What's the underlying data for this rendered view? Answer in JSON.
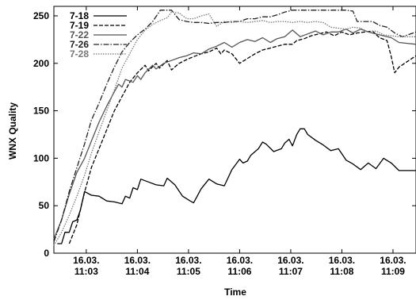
{
  "chart_data": {
    "type": "line",
    "xlabel": "Time",
    "ylabel": "WNX Quality",
    "ylim": [
      0,
      260
    ],
    "xlim": [
      "11:02:22",
      "11:09:27"
    ],
    "yticks": [
      0,
      50,
      100,
      150,
      200,
      250
    ],
    "xticks": [
      {
        "value": "11:03",
        "date": "16.03.",
        "time": "11:03"
      },
      {
        "value": "11:04",
        "date": "16.03.",
        "time": "11:04"
      },
      {
        "value": "11:05",
        "date": "16.03.",
        "time": "11:05"
      },
      {
        "value": "11:06",
        "date": "16.03.",
        "time": "11:06"
      },
      {
        "value": "11:07",
        "date": "16.03.",
        "time": "11:07"
      },
      {
        "value": "11:08",
        "date": "16.03.",
        "time": "11:08"
      },
      {
        "value": "11:09",
        "date": "16.03.",
        "time": "11:09"
      }
    ],
    "grid": false,
    "legend_position": "top-left",
    "series": [
      {
        "name": "7-18",
        "stroke": "#000000",
        "dash": "",
        "points": [
          [
            "11:02:26",
            10
          ],
          [
            "11:02:31",
            10
          ],
          [
            "11:02:35",
            22
          ],
          [
            "11:02:40",
            22
          ],
          [
            "11:02:44",
            33
          ],
          [
            "11:02:49",
            35
          ],
          [
            "11:02:53",
            45
          ],
          [
            "11:02:58",
            65
          ],
          [
            "11:03:06",
            61
          ],
          [
            "11:03:15",
            60
          ],
          [
            "11:03:24",
            55
          ],
          [
            "11:03:33",
            54
          ],
          [
            "11:03:42",
            52
          ],
          [
            "11:03:46",
            60
          ],
          [
            "11:03:51",
            58
          ],
          [
            "11:03:55",
            69
          ],
          [
            "11:04:00",
            67
          ],
          [
            "11:04:04",
            78
          ],
          [
            "11:04:13",
            75
          ],
          [
            "11:04:22",
            72
          ],
          [
            "11:04:31",
            71
          ],
          [
            "11:04:35",
            79
          ],
          [
            "11:04:44",
            72
          ],
          [
            "11:04:53",
            60
          ],
          [
            "11:05:02",
            55
          ],
          [
            "11:05:06",
            53
          ],
          [
            "11:05:15",
            68
          ],
          [
            "11:05:24",
            78
          ],
          [
            "11:05:33",
            73
          ],
          [
            "11:05:42",
            71
          ],
          [
            "11:05:51",
            88
          ],
          [
            "11:06:00",
            99
          ],
          [
            "11:06:04",
            95
          ],
          [
            "11:06:09",
            97
          ],
          [
            "11:06:13",
            103
          ],
          [
            "11:06:22",
            110
          ],
          [
            "11:06:27",
            117
          ],
          [
            "11:06:31",
            115
          ],
          [
            "11:06:40",
            107
          ],
          [
            "11:06:49",
            110
          ],
          [
            "11:06:53",
            116
          ],
          [
            "11:06:58",
            120
          ],
          [
            "11:07:02",
            113
          ],
          [
            "11:07:07",
            125
          ],
          [
            "11:07:11",
            131
          ],
          [
            "11:07:16",
            131
          ],
          [
            "11:07:20",
            125
          ],
          [
            "11:07:29",
            119
          ],
          [
            "11:07:38",
            114
          ],
          [
            "11:07:47",
            108
          ],
          [
            "11:07:56",
            110
          ],
          [
            "11:08:05",
            98
          ],
          [
            "11:08:13",
            94
          ],
          [
            "11:08:22",
            88
          ],
          [
            "11:08:31",
            95
          ],
          [
            "11:08:40",
            89
          ],
          [
            "11:08:49",
            100
          ],
          [
            "11:08:58",
            95
          ],
          [
            "11:09:07",
            87
          ],
          [
            "11:09:27",
            87
          ]
        ]
      },
      {
        "name": "7-19",
        "stroke": "#000000",
        "dash": "5,2",
        "points": [
          [
            "11:02:40",
            10
          ],
          [
            "11:02:49",
            30
          ],
          [
            "11:02:58",
            64
          ],
          [
            "11:03:06",
            90
          ],
          [
            "11:03:15",
            110
          ],
          [
            "11:03:24",
            130
          ],
          [
            "11:03:33",
            150
          ],
          [
            "11:03:42",
            165
          ],
          [
            "11:03:51",
            180
          ],
          [
            "11:04:00",
            190
          ],
          [
            "11:04:09",
            198
          ],
          [
            "11:04:13",
            192
          ],
          [
            "11:04:22",
            200
          ],
          [
            "11:04:26",
            195
          ],
          [
            "11:04:35",
            203
          ],
          [
            "11:04:40",
            193
          ],
          [
            "11:04:49",
            200
          ],
          [
            "11:04:58",
            204
          ],
          [
            "11:05:06",
            207
          ],
          [
            "11:05:15",
            210
          ],
          [
            "11:05:24",
            212
          ],
          [
            "11:05:33",
            216
          ],
          [
            "11:05:38",
            210
          ],
          [
            "11:05:42",
            214
          ],
          [
            "11:05:51",
            210
          ],
          [
            "11:06:00",
            200
          ],
          [
            "11:06:09",
            205
          ],
          [
            "11:06:18",
            210
          ],
          [
            "11:06:27",
            214
          ],
          [
            "11:06:36",
            216
          ],
          [
            "11:06:44",
            218
          ],
          [
            "11:06:53",
            220
          ],
          [
            "11:07:02",
            220
          ],
          [
            "11:07:07",
            224
          ],
          [
            "11:07:16",
            226
          ],
          [
            "11:07:24",
            229
          ],
          [
            "11:07:33",
            231
          ],
          [
            "11:07:42",
            233
          ],
          [
            "11:07:51",
            229
          ],
          [
            "11:08:00",
            233
          ],
          [
            "11:08:09",
            230
          ],
          [
            "11:08:18",
            232
          ],
          [
            "11:08:27",
            233
          ],
          [
            "11:08:36",
            234
          ],
          [
            "11:08:44",
            227
          ],
          [
            "11:08:53",
            224
          ],
          [
            "11:08:58",
            207
          ],
          [
            "11:09:02",
            190
          ],
          [
            "11:09:07",
            196
          ],
          [
            "11:09:27",
            208
          ]
        ]
      },
      {
        "name": "7-22",
        "stroke": "#555555",
        "dash": "",
        "points": [
          [
            "11:02:22",
            15
          ],
          [
            "11:02:31",
            35
          ],
          [
            "11:02:40",
            62
          ],
          [
            "11:02:49",
            85
          ],
          [
            "11:02:58",
            100
          ],
          [
            "11:03:06",
            118
          ],
          [
            "11:03:15",
            138
          ],
          [
            "11:03:24",
            155
          ],
          [
            "11:03:33",
            170
          ],
          [
            "11:03:38",
            178
          ],
          [
            "11:03:42",
            175
          ],
          [
            "11:03:46",
            183
          ],
          [
            "11:03:55",
            180
          ],
          [
            "11:04:00",
            187
          ],
          [
            "11:04:04",
            183
          ],
          [
            "11:04:09",
            190
          ],
          [
            "11:04:18",
            198
          ],
          [
            "11:04:22",
            194
          ],
          [
            "11:04:31",
            200
          ],
          [
            "11:04:40",
            203
          ],
          [
            "11:04:49",
            206
          ],
          [
            "11:04:58",
            208
          ],
          [
            "11:05:06",
            211
          ],
          [
            "11:05:15",
            210
          ],
          [
            "11:05:24",
            215
          ],
          [
            "11:05:33",
            218
          ],
          [
            "11:05:42",
            222
          ],
          [
            "11:05:51",
            217
          ],
          [
            "11:06:00",
            222
          ],
          [
            "11:06:09",
            225
          ],
          [
            "11:06:18",
            223
          ],
          [
            "11:06:27",
            227
          ],
          [
            "11:06:36",
            222
          ],
          [
            "11:06:44",
            226
          ],
          [
            "11:06:53",
            228
          ],
          [
            "11:07:02",
            235
          ],
          [
            "11:07:11",
            228
          ],
          [
            "11:07:20",
            231
          ],
          [
            "11:07:29",
            234
          ],
          [
            "11:07:38",
            230
          ],
          [
            "11:07:47",
            233
          ],
          [
            "11:07:56",
            233
          ],
          [
            "11:08:05",
            236
          ],
          [
            "11:08:13",
            232
          ],
          [
            "11:08:22",
            236
          ],
          [
            "11:08:31",
            233
          ],
          [
            "11:08:40",
            231
          ],
          [
            "11:08:49",
            229
          ],
          [
            "11:08:58",
            227
          ],
          [
            "11:09:07",
            222
          ],
          [
            "11:09:27",
            220
          ]
        ]
      },
      {
        "name": "7-26",
        "stroke": "#222222",
        "dash": "7,2,1.5,2",
        "points": [
          [
            "11:02:22",
            12
          ],
          [
            "11:02:31",
            35
          ],
          [
            "11:02:40",
            65
          ],
          [
            "11:02:49",
            90
          ],
          [
            "11:02:58",
            115
          ],
          [
            "11:03:06",
            140
          ],
          [
            "11:03:15",
            158
          ],
          [
            "11:03:24",
            178
          ],
          [
            "11:03:33",
            196
          ],
          [
            "11:03:42",
            212
          ],
          [
            "11:03:51",
            222
          ],
          [
            "11:04:00",
            230
          ],
          [
            "11:04:09",
            236
          ],
          [
            "11:04:18",
            244
          ],
          [
            "11:04:27",
            256
          ],
          [
            "11:04:40",
            256
          ],
          [
            "11:04:49",
            246
          ],
          [
            "11:04:58",
            244
          ],
          [
            "11:05:06",
            243
          ],
          [
            "11:05:15",
            243
          ],
          [
            "11:05:24",
            242
          ],
          [
            "11:05:33",
            243
          ],
          [
            "11:05:42",
            243
          ],
          [
            "11:05:51",
            244
          ],
          [
            "11:06:00",
            244
          ],
          [
            "11:06:09",
            247
          ],
          [
            "11:06:18",
            247
          ],
          [
            "11:06:27",
            249
          ],
          [
            "11:06:36",
            249
          ],
          [
            "11:06:44",
            251
          ],
          [
            "11:06:53",
            254
          ],
          [
            "11:07:02",
            256
          ],
          [
            "11:07:11",
            256
          ],
          [
            "11:07:20",
            256
          ],
          [
            "11:07:29",
            256
          ],
          [
            "11:07:38",
            256
          ],
          [
            "11:07:47",
            256
          ],
          [
            "11:07:56",
            256
          ],
          [
            "11:08:05",
            256
          ],
          [
            "11:08:13",
            255
          ],
          [
            "11:08:18",
            244
          ],
          [
            "11:08:27",
            244
          ],
          [
            "11:08:36",
            244
          ],
          [
            "11:08:44",
            240
          ],
          [
            "11:08:53",
            238
          ],
          [
            "11:09:02",
            232
          ],
          [
            "11:09:11",
            228
          ],
          [
            "11:09:27",
            233
          ]
        ]
      },
      {
        "name": "7-28",
        "stroke": "#777777",
        "dash": "1.5,1.5",
        "points": [
          [
            "11:02:22",
            8
          ],
          [
            "11:02:31",
            22
          ],
          [
            "11:02:40",
            40
          ],
          [
            "11:02:49",
            60
          ],
          [
            "11:02:58",
            82
          ],
          [
            "11:03:06",
            105
          ],
          [
            "11:03:15",
            128
          ],
          [
            "11:03:24",
            150
          ],
          [
            "11:03:33",
            172
          ],
          [
            "11:03:42",
            195
          ],
          [
            "11:03:51",
            210
          ],
          [
            "11:04:00",
            225
          ],
          [
            "11:04:09",
            235
          ],
          [
            "11:04:18",
            241
          ],
          [
            "11:04:27",
            245
          ],
          [
            "11:04:35",
            248
          ],
          [
            "11:04:40",
            254
          ],
          [
            "11:04:49",
            253
          ],
          [
            "11:04:58",
            247
          ],
          [
            "11:05:06",
            247
          ],
          [
            "11:05:15",
            250
          ],
          [
            "11:05:24",
            252
          ],
          [
            "11:05:33",
            239
          ],
          [
            "11:05:42",
            244
          ],
          [
            "11:05:51",
            243
          ],
          [
            "11:06:00",
            244
          ],
          [
            "11:06:09",
            243
          ],
          [
            "11:06:18",
            244
          ],
          [
            "11:06:27",
            245
          ],
          [
            "11:06:36",
            243
          ],
          [
            "11:06:44",
            244
          ],
          [
            "11:06:53",
            244
          ],
          [
            "11:07:02",
            243
          ],
          [
            "11:07:11",
            244
          ],
          [
            "11:07:20",
            243
          ],
          [
            "11:07:29",
            244
          ],
          [
            "11:07:38",
            243
          ],
          [
            "11:07:47",
            238
          ],
          [
            "11:07:56",
            237
          ],
          [
            "11:08:05",
            236
          ],
          [
            "11:08:13",
            238
          ],
          [
            "11:08:22",
            237
          ],
          [
            "11:08:31",
            233
          ],
          [
            "11:08:40",
            234
          ],
          [
            "11:08:49",
            230
          ],
          [
            "11:09:07",
            228
          ],
          [
            "11:09:27",
            228
          ]
        ]
      }
    ]
  }
}
